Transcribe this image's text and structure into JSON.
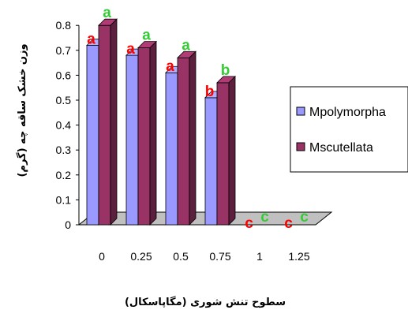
{
  "chart_data": {
    "type": "bar",
    "style": "3d-clustered-column",
    "categories": [
      "0",
      "0.25",
      "0.5",
      "0.75",
      "1",
      "1.25"
    ],
    "series": [
      {
        "name": "Mpolymorpha",
        "color": "#9999ff",
        "values": [
          0.72,
          0.68,
          0.61,
          0.51,
          0.0,
          0.0
        ],
        "significance": [
          "a",
          "a",
          "a",
          "b",
          "c",
          "c"
        ],
        "significance_color": "#ff0000"
      },
      {
        "name": "Mscutellata",
        "color": "#993366",
        "values": [
          0.8,
          0.71,
          0.67,
          0.57,
          0.0,
          0.0
        ],
        "significance": [
          "a",
          "a",
          "a",
          "b",
          "c",
          "c"
        ],
        "significance_color": "#33cc33"
      }
    ],
    "y_ticks": [
      "0",
      "0.1",
      "0.2",
      "0.3",
      "0.4",
      "0.5",
      "0.6",
      "0.7",
      "0.8"
    ],
    "ylim": [
      0,
      0.8
    ],
    "xlabel": "سطوح تنش شوری (مگاپاسکال)",
    "ylabel": "وزن خشک ساقه چه (گرم)",
    "legend_position": "right",
    "grid": false,
    "floor_color": "#c0c0c0"
  }
}
